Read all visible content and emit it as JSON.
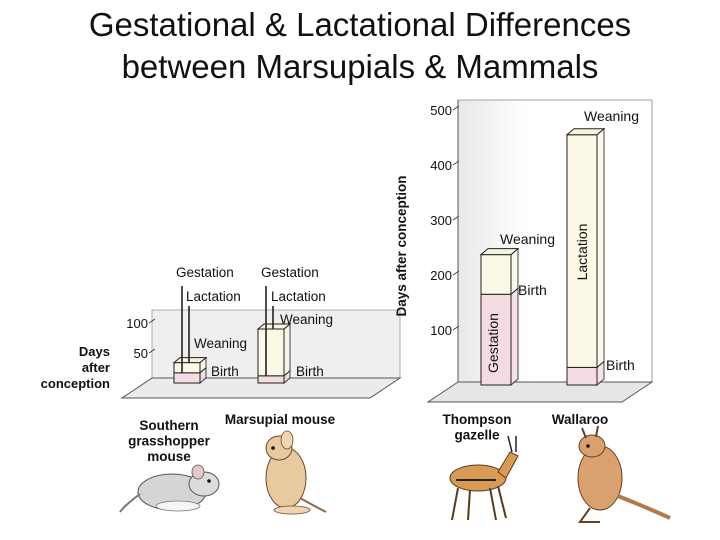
{
  "title_line1": "Gestational & Lactational Differences",
  "title_line2": "between Marsupials & Mammals",
  "chart_data": [
    {
      "type": "bar",
      "stacked": true,
      "perspective": "3d",
      "ylabel": "Days after conception",
      "yticks": [
        50,
        100
      ],
      "categories": [
        "Southern grasshopper mouse",
        "Marsupial mouse"
      ],
      "animals": [
        "grasshopper-mouse",
        "marsupial-mouse"
      ],
      "series": [
        {
          "name": "Gestation",
          "values": [
            17,
            12
          ]
        },
        {
          "name": "Lactation",
          "values": [
            17,
            78
          ]
        }
      ],
      "annotations": {
        "birth": "Birth",
        "weaning": "Weaning",
        "gestation": "Gestation",
        "lactation": "Lactation"
      },
      "colors": {
        "gestation": "#f4dce2",
        "lactation": "#fbf8e6",
        "outline": "#222222"
      }
    },
    {
      "type": "bar",
      "stacked": true,
      "perspective": "3d",
      "ylabel": "Days after conception",
      "ylim": [
        0,
        500
      ],
      "yticks": [
        100,
        200,
        300,
        400,
        500
      ],
      "categories": [
        "Thompson gazelle",
        "Wallaroo"
      ],
      "animals": [
        "thompson-gazelle",
        "wallaroo"
      ],
      "series": [
        {
          "name": "Gestation",
          "values": [
            165,
            32
          ]
        },
        {
          "name": "Lactation",
          "values": [
            72,
            423
          ]
        }
      ],
      "annotations": {
        "birth": "Birth",
        "weaning": "Weaning",
        "gestation": "Gestation",
        "lactation": "Lactation"
      },
      "colors": {
        "gestation": "#f4dce2",
        "lactation": "#fbf8e6",
        "outline": "#222222"
      }
    }
  ]
}
